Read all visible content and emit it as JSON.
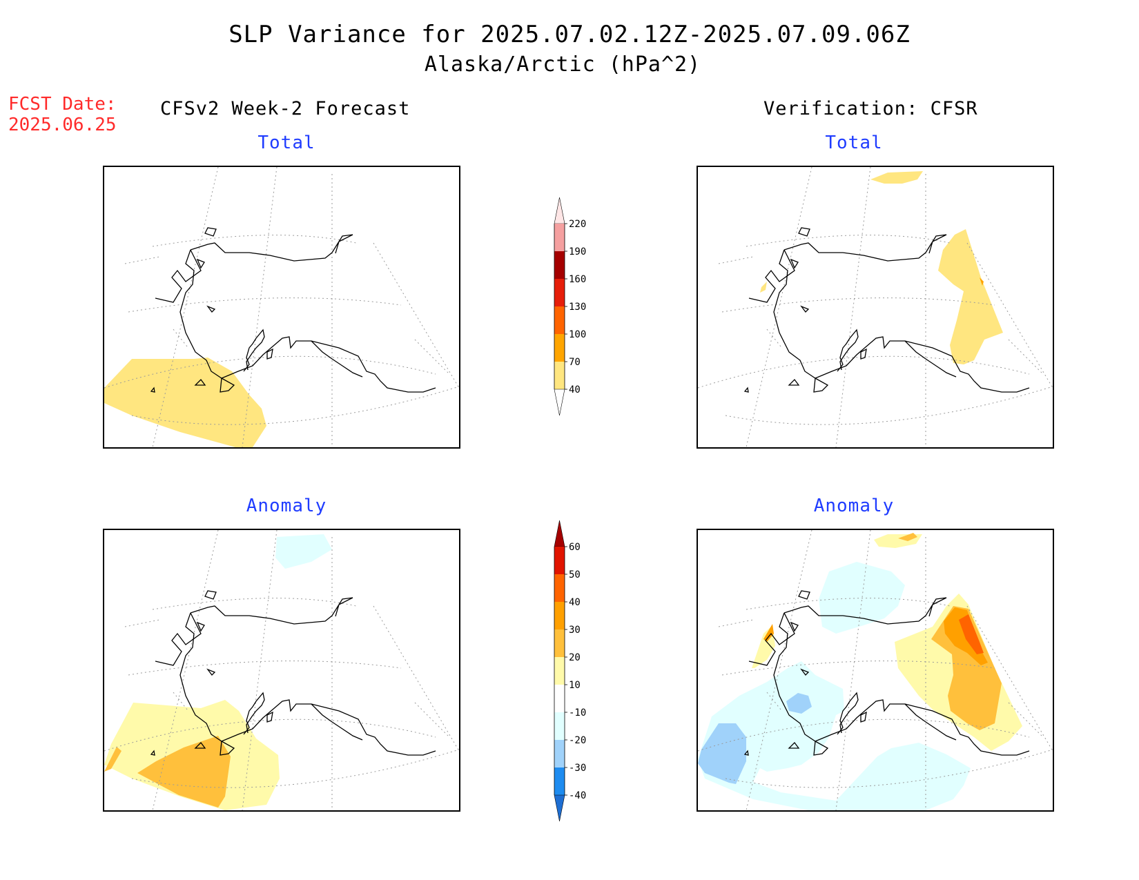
{
  "title": "SLP Variance for 2025.07.02.12Z-2025.07.09.06Z",
  "subtitle": "Alaska/Arctic (hPa^2)",
  "fcst": {
    "label": "FCST Date:",
    "date": "2025.06.25"
  },
  "columns": {
    "left": "CFSv2 Week-2 Forecast",
    "right": "Verification: CFSR"
  },
  "panels": {
    "fcst_total": {
      "title": "Total"
    },
    "fcst_anom": {
      "title": "Anomaly"
    },
    "verif_total": {
      "title": "Total"
    },
    "verif_anom": {
      "title": "Anomaly"
    }
  },
  "colorbar_total": {
    "labels": [
      "40",
      "70",
      "100",
      "130",
      "160",
      "190",
      "220"
    ],
    "colors": [
      "#ffffff",
      "#ffe680",
      "#ffa500",
      "#ff6400",
      "#e61e0a",
      "#a50000",
      "#f5a0a0",
      "#ffe6e6"
    ]
  },
  "colorbar_anom": {
    "labels": [
      "-40",
      "-30",
      "-20",
      "-10",
      "10",
      "20",
      "30",
      "40",
      "50",
      "60"
    ],
    "colors": [
      "#1e6ed2",
      "#1e8cf0",
      "#a0d2fa",
      "#e1ffff",
      "#ffffff",
      "#fffaaa",
      "#ffc03c",
      "#ffa000",
      "#ff6400",
      "#e11400",
      "#a50000"
    ]
  },
  "colors": {
    "title_red": "#ff2a2a",
    "panel_title_blue": "#1f3cff",
    "fill_yellow": "#ffe680",
    "fill_lightyellow": "#fffaaa",
    "fill_orange": "#ffc03c",
    "fill_darkorange": "#ffa000",
    "fill_red": "#ff6400",
    "fill_lightcyan": "#e1ffff",
    "fill_lightblue": "#a0d2fa"
  }
}
